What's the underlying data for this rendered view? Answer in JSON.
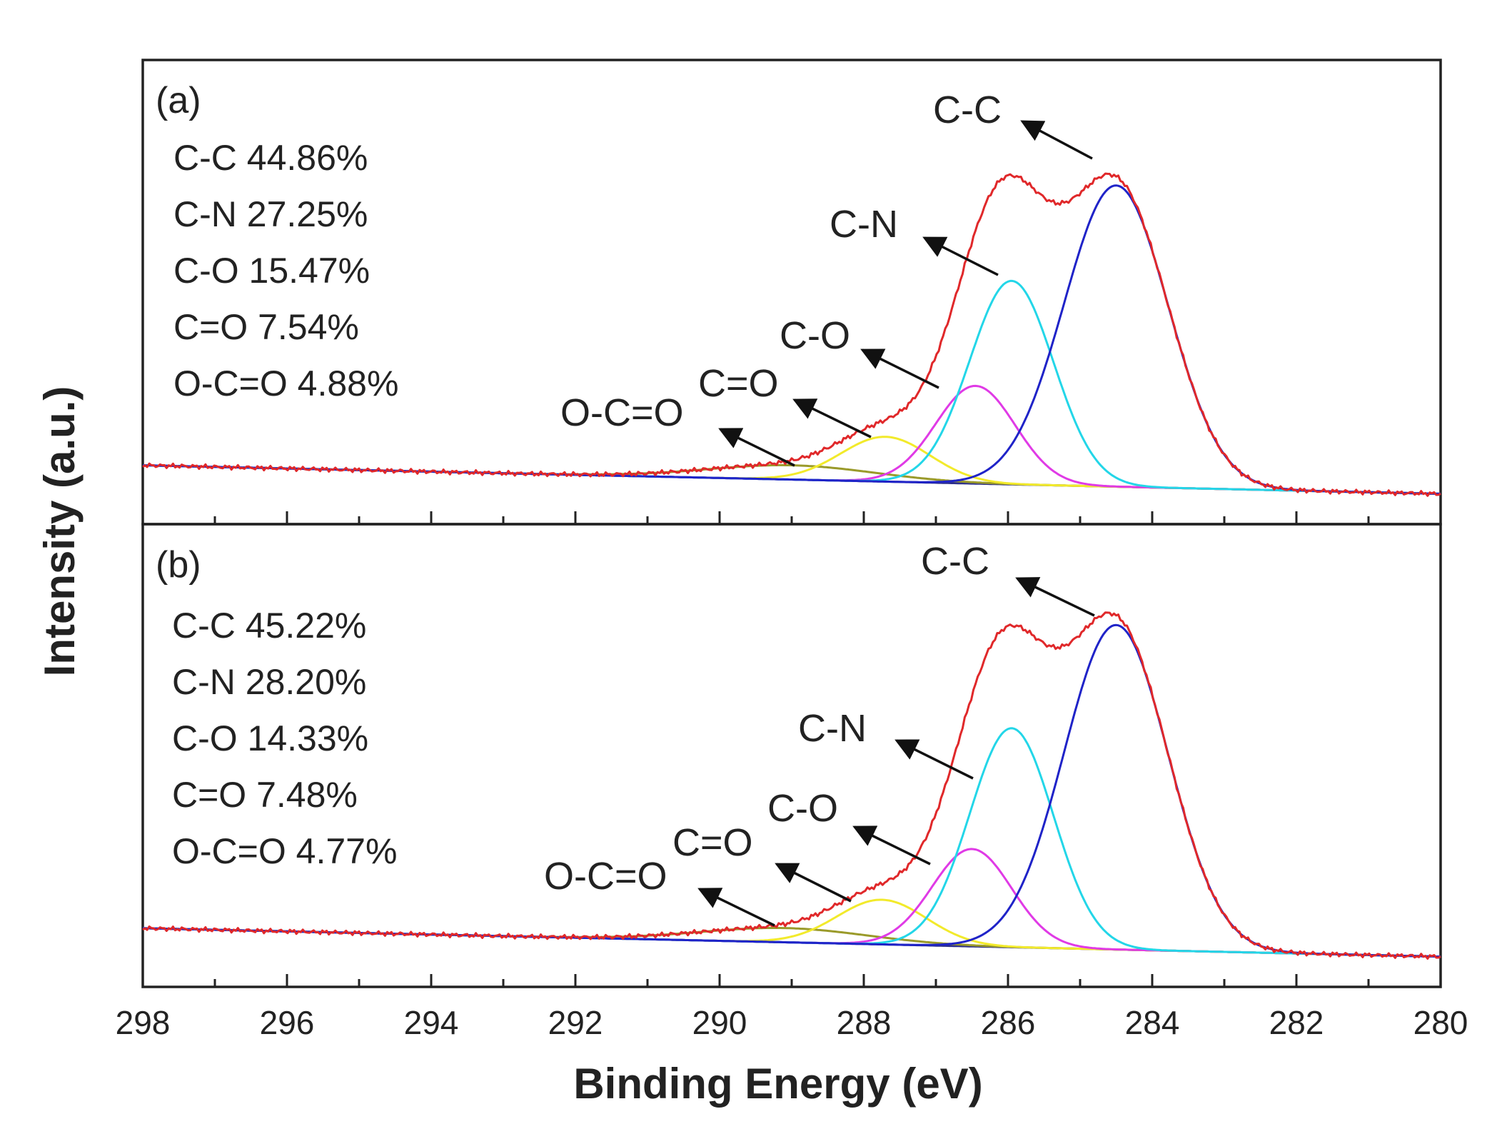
{
  "chart_data": {
    "type": "line",
    "xlabel": "Binding Energy (eV)",
    "ylabel": "Intensity (a.u.)",
    "xlim": [
      298,
      280
    ],
    "x_reversed": true,
    "x_ticks": [
      298,
      296,
      294,
      292,
      290,
      288,
      286,
      284,
      282,
      280
    ],
    "x_tick_labels": [
      "298",
      "296",
      "294",
      "292",
      "290",
      "288",
      "286",
      "284",
      "282",
      "280"
    ],
    "ylim": [
      0,
      1
    ],
    "colors": {
      "envelope": "#e0282a",
      "C-C": "#1f23c8",
      "C-N": "#23d6e8",
      "C-O": "#e03ae6",
      "C=O": "#f2ea2b",
      "O-C=O": "#9a9a2a",
      "background": "#2d2f8a"
    },
    "panels": [
      {
        "label": "(a)",
        "baseline": {
          "start": 0.12,
          "end": 0.05
        },
        "components": [
          {
            "name": "C-C",
            "center": 284.5,
            "sigma": 0.72,
            "height": 0.74,
            "percent": "44.86%",
            "text": "C-C 44.86%"
          },
          {
            "name": "C-N",
            "center": 285.95,
            "sigma": 0.58,
            "height": 0.5,
            "percent": "27.25%",
            "text": "C-N 27.25%"
          },
          {
            "name": "C-O",
            "center": 286.45,
            "sigma": 0.55,
            "height": 0.24,
            "percent": "15.47%",
            "text": "C-O 15.47%"
          },
          {
            "name": "C=O",
            "center": 287.7,
            "sigma": 0.62,
            "height": 0.11,
            "percent": "7.54%",
            "text": "C=O 7.54%"
          },
          {
            "name": "O-C=O",
            "center": 289.0,
            "sigma": 1.15,
            "height": 0.035,
            "percent": "4.88%",
            "text": "O-C=O 4.88%"
          }
        ],
        "peak_labels": [
          "C-C",
          "C-N",
          "C-O",
          "C=O",
          "O-C=O"
        ]
      },
      {
        "label": "(b)",
        "baseline": {
          "start": 0.12,
          "end": 0.05
        },
        "components": [
          {
            "name": "C-C",
            "center": 284.5,
            "sigma": 0.72,
            "height": 0.8,
            "percent": "45.22%",
            "text": "C-C 45.22%"
          },
          {
            "name": "C-N",
            "center": 285.95,
            "sigma": 0.58,
            "height": 0.54,
            "percent": "28.20%",
            "text": "C-N 28.20%"
          },
          {
            "name": "C-O",
            "center": 286.5,
            "sigma": 0.55,
            "height": 0.24,
            "percent": "14.33%",
            "text": "C-O 14.33%"
          },
          {
            "name": "C=O",
            "center": 287.75,
            "sigma": 0.62,
            "height": 0.11,
            "percent": "7.48%",
            "text": "C=O 7.48%"
          },
          {
            "name": "O-C=O",
            "center": 289.1,
            "sigma": 1.15,
            "height": 0.035,
            "percent": "4.77%",
            "text": "O-C=O 4.77%"
          }
        ],
        "peak_labels": [
          "C-C",
          "C-N",
          "C-O",
          "C=O",
          "O-C=O"
        ]
      }
    ]
  }
}
